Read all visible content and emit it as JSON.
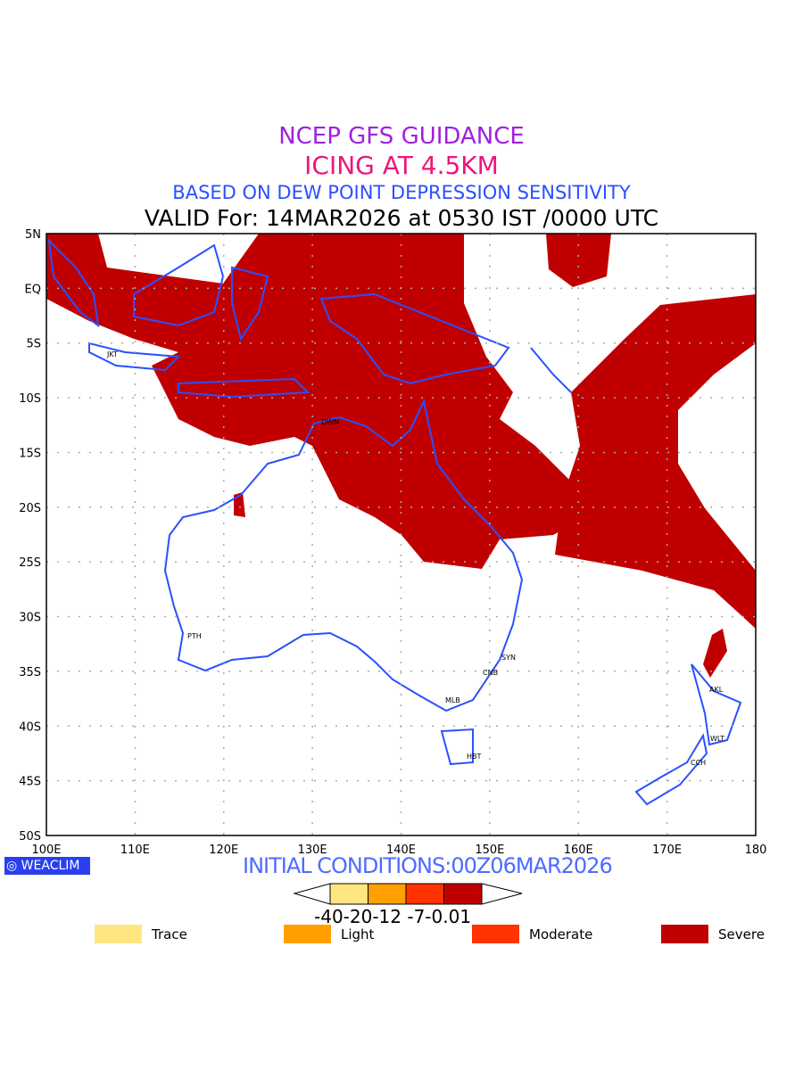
{
  "header": {
    "title1": "NCEP GFS GUIDANCE",
    "title2": "ICING AT 4.5KM",
    "title3": "BASED ON DEW POINT DEPRESSION SENSITIVITY",
    "valid": "VALID For: 14MAR2026 at 0530 IST /0000 UTC"
  },
  "map": {
    "lat_labels": [
      "5N",
      "EQ",
      "5S",
      "10S",
      "15S",
      "20S",
      "25S",
      "30S",
      "35S",
      "40S",
      "45S",
      "50S"
    ],
    "lon_labels": [
      "100E",
      "110E",
      "120E",
      "130E",
      "140E",
      "150E",
      "160E",
      "170E",
      "180"
    ],
    "cities": [
      {
        "code": "JKT"
      },
      {
        "code": "DWN"
      },
      {
        "code": "PTH"
      },
      {
        "code": "SYN"
      },
      {
        "code": "CNB"
      },
      {
        "code": "MLB"
      },
      {
        "code": "HBT"
      },
      {
        "code": "AKL"
      },
      {
        "code": "WLT"
      },
      {
        "code": "CCH"
      }
    ],
    "colors": {
      "coast": "#2a50ff",
      "severe": "#c00000"
    }
  },
  "footer": {
    "logo": "WEACLIM",
    "initial": "INITIAL CONDITIONS:00Z06MAR2026",
    "colorbar": {
      "values": "-40-20-12 -7-0.01",
      "colors": [
        "#ffe680",
        "#ffa000",
        "#ff3300",
        "#c00000"
      ]
    },
    "legend": [
      {
        "label": "Trace",
        "color": "#ffe680"
      },
      {
        "label": "Light",
        "color": "#ffa000"
      },
      {
        "label": "Moderate",
        "color": "#ff3300"
      },
      {
        "label": "Severe",
        "color": "#c00000"
      }
    ]
  }
}
